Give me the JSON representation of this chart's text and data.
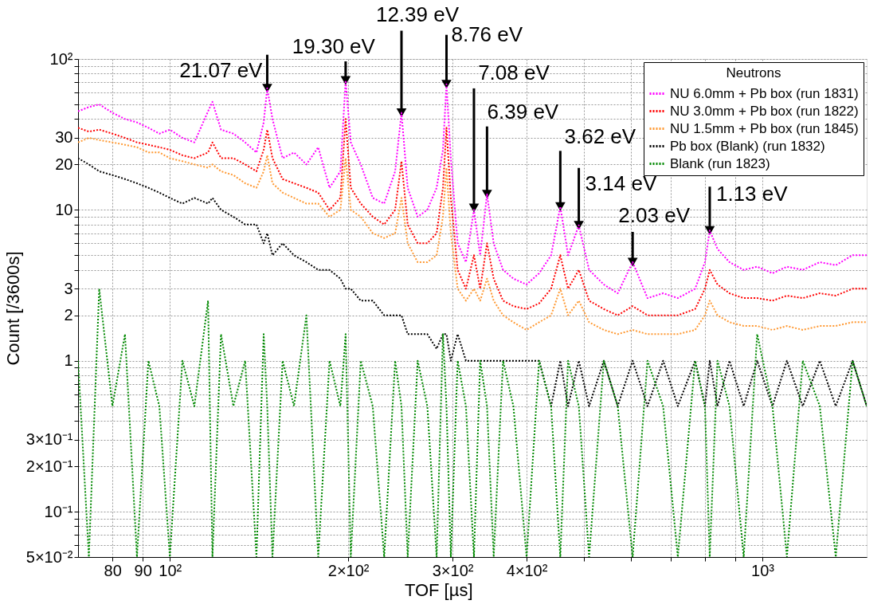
{
  "chart_data": {
    "type": "line",
    "xlabel": "TOF [µs]",
    "ylabel": "Count [/3600s]",
    "legend_title": "Neutrons",
    "legend": "top right",
    "grid": true,
    "log": "xy",
    "line_style": "dotted",
    "xlim": [
      70,
      1500
    ],
    "ylim": [
      0.05,
      100
    ],
    "xticks": [
      80,
      90,
      {
        "value": 100,
        "label": "10²"
      },
      {
        "value": 200,
        "label": "2×10²"
      },
      {
        "value": 300,
        "label": "3×10²"
      },
      {
        "value": 400,
        "label": "4×10²"
      },
      {
        "value": 500,
        "label": null
      },
      {
        "value": 600,
        "label": null
      },
      {
        "value": 700,
        "label": null
      },
      {
        "value": 800,
        "label": null
      },
      {
        "value": 900,
        "label": null
      },
      {
        "value": 1000,
        "label": "10³"
      }
    ],
    "yticks": [
      {
        "value": 0.05,
        "label": "5×10⁻²"
      },
      {
        "value": 0.06,
        "label": null
      },
      {
        "value": 0.07,
        "label": null
      },
      {
        "value": 0.08,
        "label": null
      },
      {
        "value": 0.09,
        "label": null
      },
      {
        "value": 0.1,
        "label": "10⁻¹"
      },
      {
        "value": 0.2,
        "label": "2×10⁻¹"
      },
      {
        "value": 0.3,
        "label": "3×10⁻¹"
      },
      {
        "value": 0.4,
        "label": null
      },
      {
        "value": 0.5,
        "label": null
      },
      {
        "value": 0.6,
        "label": null
      },
      {
        "value": 0.7,
        "label": null
      },
      {
        "value": 0.8,
        "label": null
      },
      {
        "value": 0.9,
        "label": null
      },
      1,
      2,
      3,
      {
        "value": 4,
        "label": null
      },
      {
        "value": 5,
        "label": null
      },
      {
        "value": 6,
        "label": null
      },
      {
        "value": 7,
        "label": null
      },
      {
        "value": 8,
        "label": null
      },
      {
        "value": 9,
        "label": null
      },
      10,
      20,
      30,
      {
        "value": 40,
        "label": null
      },
      {
        "value": 50,
        "label": null
      },
      {
        "value": 60,
        "label": null
      },
      {
        "value": 70,
        "label": null
      },
      {
        "value": 80,
        "label": null
      },
      {
        "value": 90,
        "label": null
      },
      {
        "value": 100,
        "label": "10²"
      }
    ],
    "x": [
      70,
      73,
      76,
      80,
      84,
      88,
      92,
      96,
      100,
      105,
      110,
      116,
      118,
      122,
      128,
      134,
      140,
      144,
      146,
      149,
      155,
      162,
      170,
      178,
      186,
      194,
      198,
      202,
      210,
      220,
      230,
      240,
      246,
      252,
      262,
      272,
      282,
      289,
      293,
      298,
      306,
      316,
      326,
      334,
      343,
      352,
      365,
      380,
      400,
      420,
      440,
      456,
      470,
      490,
      510,
      540,
      570,
      604,
      640,
      680,
      720,
      770,
      800,
      815,
      840,
      880,
      930,
      980,
      1040,
      1100,
      1170,
      1250,
      1330,
      1420,
      1500
    ],
    "series": [
      {
        "name": "NU 6.0mm + Pb box (run 1831)",
        "color": "#ff00ff",
        "values": [
          45,
          48,
          50,
          44,
          40,
          38,
          35,
          32,
          34,
          30,
          28,
          45,
          52,
          34,
          32,
          28,
          24,
          38,
          64,
          40,
          22,
          24,
          20,
          26,
          14,
          18,
          72,
          28,
          20,
          12,
          11,
          18,
          44,
          14,
          9,
          10,
          14,
          25,
          68,
          22,
          6,
          4.5,
          10,
          5,
          12.7,
          6,
          4,
          3.5,
          3.2,
          3.8,
          5,
          10.5,
          5,
          7.9,
          4,
          3.2,
          2.8,
          4.5,
          2.6,
          2.8,
          2.6,
          3,
          4.5,
          7.3,
          5.5,
          4.5,
          4,
          4.2,
          3.8,
          4.2,
          4,
          4.5,
          4.3,
          5,
          5
        ]
      },
      {
        "name": "NU 3.0mm + Pb box (run 1822)",
        "color": "#ff0000",
        "values": [
          35,
          33,
          34,
          32,
          30,
          28,
          27,
          26,
          25,
          23,
          22,
          24,
          28,
          22,
          22,
          20,
          18,
          25,
          34,
          22,
          16,
          15,
          14,
          13,
          10,
          12,
          40,
          14,
          11,
          9,
          8,
          10,
          21,
          8,
          6,
          6,
          7,
          14,
          35,
          12,
          4,
          3,
          5,
          3,
          6,
          3.5,
          2.5,
          2.3,
          2.2,
          2.4,
          3,
          5,
          3,
          4,
          2.5,
          2.2,
          2,
          2.3,
          2,
          2,
          2,
          2.2,
          3,
          4,
          3.2,
          2.8,
          2.6,
          2.6,
          2.5,
          2.7,
          2.6,
          2.8,
          2.7,
          3,
          3
        ]
      },
      {
        "name": "NU 1.5mm + Pb box (run 1845)",
        "color": "#ff9933",
        "values": [
          28,
          30,
          29,
          28,
          27,
          26,
          24,
          24,
          22,
          21,
          20,
          19,
          20,
          18,
          17,
          15,
          14,
          18,
          23,
          15,
          13,
          12,
          11,
          11,
          9,
          10,
          22,
          10,
          9,
          7,
          6.5,
          7,
          12,
          6,
          4.5,
          4.5,
          5,
          9,
          19,
          7,
          3,
          2.5,
          3,
          2.5,
          3.5,
          2.5,
          2,
          1.8,
          1.6,
          1.8,
          2,
          3,
          2,
          2.5,
          1.8,
          1.6,
          1.5,
          1.6,
          1.5,
          1.5,
          1.5,
          1.6,
          2,
          2.5,
          2,
          1.8,
          1.7,
          1.7,
          1.6,
          1.7,
          1.6,
          1.7,
          1.7,
          1.8,
          1.8
        ]
      },
      {
        "name": "Pb box (Blank) (run 1832)",
        "color": "#000000",
        "values": [
          22,
          20,
          18,
          17,
          16,
          15,
          14,
          13,
          12,
          11,
          12,
          11,
          12,
          10,
          9,
          8,
          8,
          6,
          7,
          5,
          6,
          5,
          4.5,
          4,
          4,
          3.5,
          3,
          3,
          2.5,
          2.5,
          2,
          2,
          2,
          1.5,
          1.5,
          1.5,
          1.2,
          1.5,
          1.5,
          1,
          1.5,
          1,
          1,
          1,
          1,
          1,
          1,
          1,
          1,
          1,
          0.5,
          1,
          0.5,
          1,
          0.5,
          1,
          0.5,
          1,
          0.5,
          1,
          0.5,
          1,
          0.5,
          1,
          0.5,
          1,
          0.5,
          1,
          0.5,
          1,
          0.5,
          1,
          0.5,
          1,
          0.5
        ]
      },
      {
        "name": "Blank (run 1823)",
        "color": "#008800",
        "values": [
          1,
          0.05,
          3,
          0.5,
          1.5,
          0.05,
          1,
          0.5,
          0.05,
          1,
          0.5,
          2.5,
          0.05,
          1.5,
          0.5,
          1,
          0.05,
          1.5,
          0.5,
          0.05,
          1,
          0.5,
          2,
          0.05,
          1,
          0.5,
          1.5,
          0.05,
          1,
          0.5,
          0.05,
          1,
          0.5,
          0.05,
          1,
          0.5,
          0.05,
          1.5,
          0.5,
          0.05,
          1,
          0.5,
          0.05,
          1,
          0.5,
          0.05,
          1,
          0.5,
          0.05,
          1,
          0.5,
          0.05,
          1,
          0.5,
          0.05,
          1,
          0.5,
          0.05,
          1,
          0.5,
          0.05,
          1,
          0.5,
          0.05,
          1,
          0.5,
          0.05,
          1.5,
          0.5,
          0.05,
          1,
          0.5,
          0.05,
          1,
          0.5
        ]
      }
    ],
    "annotations": [
      {
        "text": "21.07 eV",
        "x": 146,
        "y": 64
      },
      {
        "text": "19.30 eV",
        "x": 198,
        "y": 72
      },
      {
        "text": "12.39 eV",
        "x": 246,
        "y": 44
      },
      {
        "text": "8.76 eV",
        "x": 293,
        "y": 68
      },
      {
        "text": "7.08 eV",
        "x": 326,
        "y": 10.3
      },
      {
        "text": "6.39 eV",
        "x": 343,
        "y": 12.7
      },
      {
        "text": "3.62 eV",
        "x": 456,
        "y": 10.5
      },
      {
        "text": "3.14 eV",
        "x": 490,
        "y": 7.9
      },
      {
        "text": "2.03 eV",
        "x": 604,
        "y": 4.5
      },
      {
        "text": "1.13 eV",
        "x": 815,
        "y": 7.3
      }
    ]
  }
}
